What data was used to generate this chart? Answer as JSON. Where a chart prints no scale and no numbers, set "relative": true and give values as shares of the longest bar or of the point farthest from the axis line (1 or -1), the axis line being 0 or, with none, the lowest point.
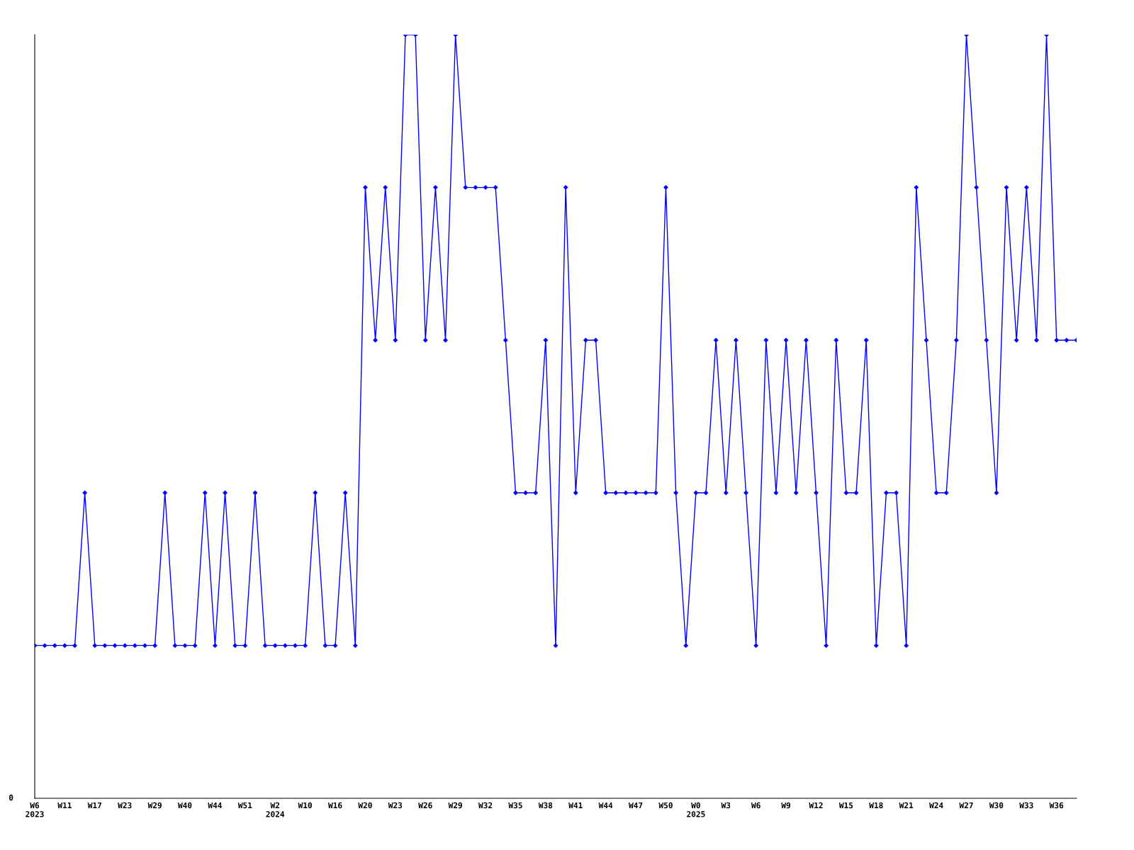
{
  "chart_data": {
    "type": "line",
    "relative": true,
    "categories": [
      "W6\n2023",
      null,
      null,
      "W11",
      null,
      null,
      "W17",
      null,
      null,
      "W23",
      null,
      null,
      "W29",
      null,
      null,
      "W40",
      null,
      null,
      "W44",
      null,
      null,
      "W51",
      null,
      null,
      "W2\n2024",
      null,
      null,
      "W10",
      null,
      null,
      "W16",
      null,
      null,
      "W20",
      null,
      null,
      "W23",
      null,
      null,
      "W26",
      null,
      null,
      "W29",
      null,
      null,
      "W32",
      null,
      null,
      "W35",
      null,
      null,
      "W38",
      null,
      null,
      "W41",
      null,
      null,
      "W44",
      null,
      null,
      "W47",
      null,
      null,
      "W50",
      null,
      null,
      "W0\n2025",
      null,
      null,
      "W3",
      null,
      null,
      "W6",
      null,
      null,
      "W9",
      null,
      null,
      "W12",
      null,
      null,
      "W15",
      null,
      null,
      "W18",
      null,
      null,
      "W21",
      null,
      null,
      "W24",
      null,
      null,
      "W27",
      null,
      null,
      "W30",
      null,
      null,
      "W33",
      null,
      null,
      "W36",
      null,
      null
    ],
    "series": [
      {
        "color": "#0000ff",
        "values": [
          0.2,
          0.2,
          0.2,
          0.2,
          0.2,
          0.4,
          0.2,
          0.2,
          0.2,
          0.2,
          0.2,
          0.2,
          0.2,
          0.4,
          0.2,
          0.2,
          0.2,
          0.4,
          0.2,
          0.4,
          0.2,
          0.2,
          0.4,
          0.2,
          0.2,
          0.2,
          0.2,
          0.2,
          0.4,
          0.2,
          0.2,
          0.4,
          0.2,
          0.8,
          0.6,
          0.8,
          0.6,
          1.0,
          1.0,
          0.6,
          0.8,
          0.6,
          1.0,
          0.8,
          0.8,
          0.8,
          0.8,
          0.6,
          0.4,
          0.4,
          0.4,
          0.6,
          0.2,
          0.8,
          0.4,
          0.6,
          0.6,
          0.4,
          0.4,
          0.4,
          0.4,
          0.4,
          0.4,
          0.8,
          0.4,
          0.2,
          0.4,
          0.4,
          0.6,
          0.4,
          0.6,
          0.4,
          0.2,
          0.6,
          0.4,
          0.6,
          0.4,
          0.6,
          0.4,
          0.2,
          0.6,
          0.4,
          0.4,
          0.6,
          0.2,
          0.4,
          0.4,
          0.2,
          0.8,
          0.6,
          0.4,
          0.4,
          0.6,
          1.0,
          0.8,
          0.6,
          0.4,
          0.8,
          0.6,
          0.8,
          0.6,
          1.0,
          0.6,
          0.6,
          0.6
        ]
      }
    ],
    "annotations": [
      "0"
    ],
    "marker": "diamond",
    "line_style": "solid",
    "grid": false,
    "legend": false
  }
}
